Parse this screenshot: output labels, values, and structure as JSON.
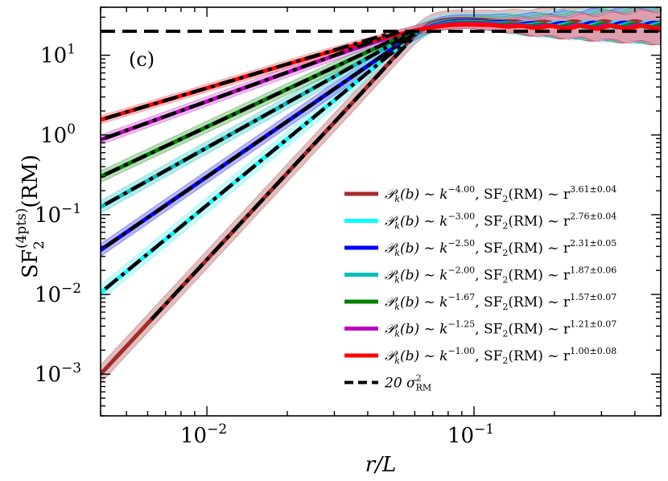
{
  "chart_data": {
    "type": "line",
    "panel_label": "(c)",
    "xlabel": "r/L",
    "ylabel": {
      "base": "SF",
      "sub": "2",
      "sup": "(4pts)",
      "tail": "(RM)"
    },
    "xscale": "log",
    "yscale": "log",
    "xlim": [
      0.004,
      0.5
    ],
    "ylim": [
      0.0003,
      40
    ],
    "x_ticks": [
      {
        "value": 0.01,
        "base": "10",
        "exp": "−2"
      },
      {
        "value": 0.1,
        "base": "10",
        "exp": "−1"
      }
    ],
    "y_ticks": [
      {
        "value": 0.001,
        "base": "10",
        "exp": "−3"
      },
      {
        "value": 0.01,
        "base": "10",
        "exp": "−2"
      },
      {
        "value": 0.1,
        "base": "10",
        "exp": "−1"
      },
      {
        "value": 1,
        "base": "10",
        "exp": "0"
      },
      {
        "value": 10,
        "base": "10",
        "exp": "1"
      }
    ],
    "grid": false,
    "legend_position": "lower-right",
    "reference_line": {
      "value": 20,
      "label_prefix": "20 σ",
      "label_sup": "2",
      "label_sub": "RM",
      "style": "dashed",
      "color": "#000000"
    },
    "series": [
      {
        "spectrum_exp": "−4.00",
        "sf_exp": "3.61±0.04",
        "color": "#a52a2a",
        "band": "#c98a8a",
        "amp0": 0.001,
        "slope": 3.61,
        "peak": 25.5,
        "sharp": 4,
        "hi": 1.3
      },
      {
        "spectrum_exp": "−3.00",
        "sf_exp": "2.76±0.04",
        "color": "#00ffff",
        "band": "#9ff2f2",
        "amp0": 0.0105,
        "slope": 2.76,
        "peak": 24.5,
        "sharp": 4,
        "hi": 1.25
      },
      {
        "spectrum_exp": "−2.50",
        "sf_exp": "2.31±0.05",
        "color": "#0000ff",
        "band": "#7a7af0",
        "amp0": 0.036,
        "slope": 2.31,
        "peak": 24.5,
        "sharp": 4,
        "hi": 1.2
      },
      {
        "spectrum_exp": "−2.00",
        "sf_exp": "1.87±0.06",
        "color": "#00bfbf",
        "band": "#79d9d9",
        "amp0": 0.125,
        "slope": 1.87,
        "peak": 24,
        "sharp": 4,
        "hi": 1.2
      },
      {
        "spectrum_exp": "−1.67",
        "sf_exp": "1.57±0.07",
        "color": "#008000",
        "band": "#7ac07a",
        "amp0": 0.3,
        "slope": 1.57,
        "peak": 23.5,
        "sharp": 4,
        "hi": 1.18
      },
      {
        "spectrum_exp": "−1.25",
        "sf_exp": "1.21±0.07",
        "color": "#bf00bf",
        "band": "#df8adf",
        "amp0": 0.87,
        "slope": 1.21,
        "peak": 23,
        "sharp": 4,
        "hi": 1.15
      },
      {
        "spectrum_exp": "−1.00",
        "sf_exp": "1.00±0.08",
        "color": "#ff0000",
        "band": "#ff9a9a",
        "amp0": 1.55,
        "slope": 1.0,
        "peak": 22.5,
        "sharp": 4,
        "hi": 1.12
      }
    ],
    "legend_label_parts": {
      "pk": "𝒫",
      "pk_sub": "k",
      "arg": "(b) ~ k",
      "sf": ", SF",
      "sf_sub": "2",
      "sf_tail": "(RM) ~ r"
    }
  }
}
